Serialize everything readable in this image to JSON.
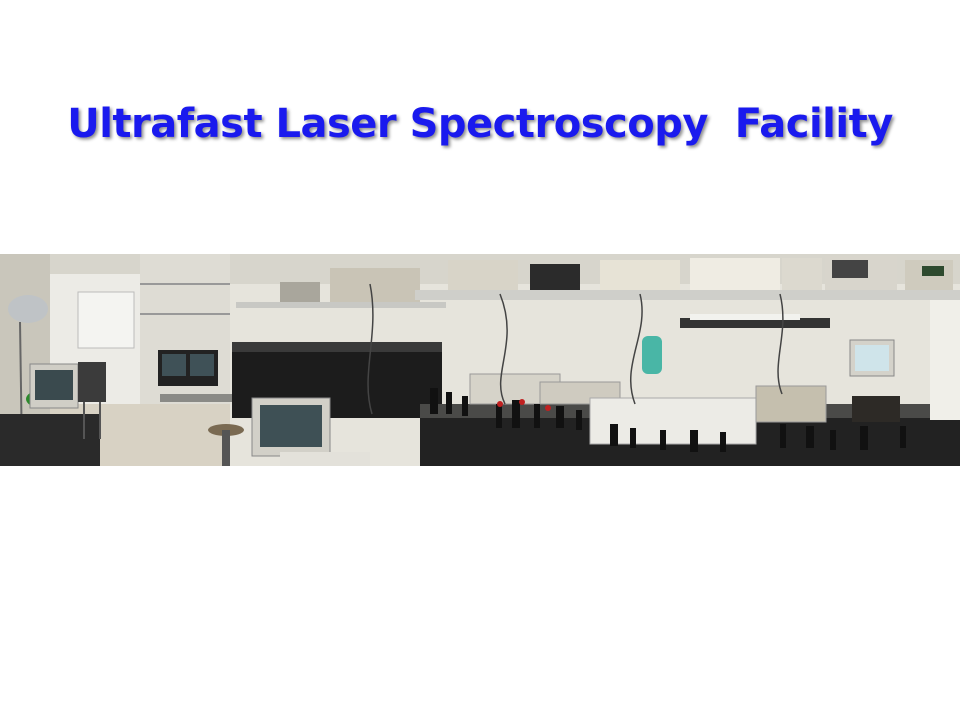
{
  "slide": {
    "title": "Ultrafast Laser Spectroscopy  Facility"
  },
  "photo": {
    "subject": "panoramic photo of a laser laboratory",
    "colors": {
      "title_blue": "#1a1aee",
      "wall": "#e9e7e0",
      "floor": "#d8d2c4",
      "bench_black": "#1c1c1c",
      "equipment_beige": "#d9d6cc"
    }
  }
}
